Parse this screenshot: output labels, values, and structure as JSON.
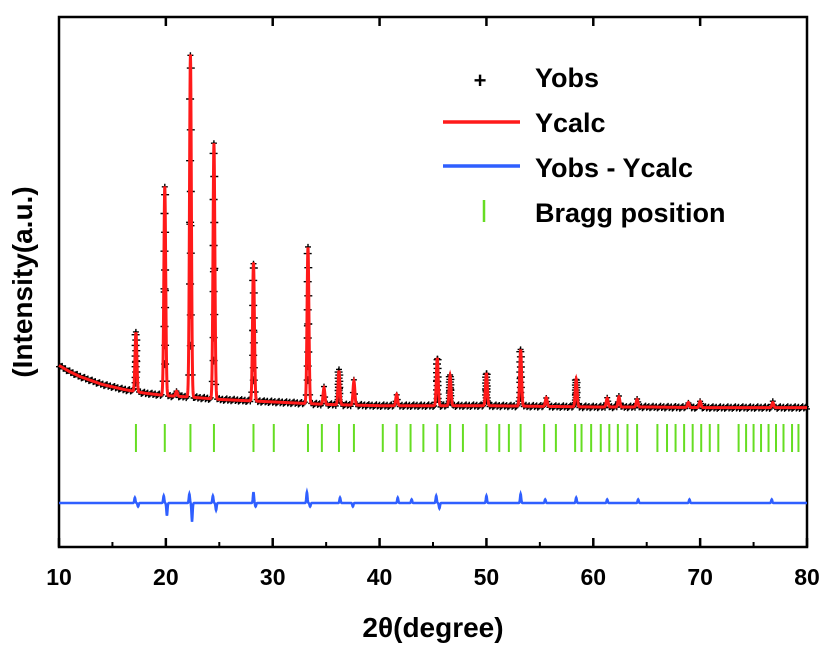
{
  "chart_data": {
    "type": "line",
    "xlabel": "2θ(degree)",
    "ylabel": "(Intensity(a.u.)",
    "xlim": [
      10,
      80
    ],
    "x_ticks": [
      10,
      20,
      30,
      40,
      50,
      60,
      70,
      80
    ],
    "y_ticks_labeled": false,
    "legend": {
      "position": "top-right",
      "entries": [
        {
          "label": "Yobs",
          "marker": "+",
          "color": "#000000"
        },
        {
          "label": "Ycalc",
          "line": true,
          "color": "#ff1a1a"
        },
        {
          "label": "Yobs - Ycalc",
          "line": true,
          "color": "#2f5fff"
        },
        {
          "label": "Bragg position",
          "marker": "|",
          "color": "#66dd22"
        }
      ]
    },
    "background": {
      "x": [
        10,
        11,
        12,
        13,
        14,
        15,
        16,
        18,
        20,
        22,
        25,
        30,
        35,
        40,
        45,
        50,
        55,
        60,
        65,
        70,
        75,
        80
      ],
      "y": [
        37,
        32,
        28,
        25,
        22,
        20,
        18,
        15,
        13,
        12,
        10,
        8,
        6,
        5,
        5,
        5,
        4.5,
        4,
        4,
        3.5,
        3.5,
        3.5
      ]
    },
    "peaks": [
      {
        "x": 17.2,
        "height": 47
      },
      {
        "x": 19.9,
        "height": 166
      },
      {
        "x": 21.0,
        "height": 4
      },
      {
        "x": 22.3,
        "height": 272
      },
      {
        "x": 24.5,
        "height": 203
      },
      {
        "x": 28.2,
        "height": 110
      },
      {
        "x": 33.3,
        "height": 124
      },
      {
        "x": 34.8,
        "height": 13
      },
      {
        "x": 36.2,
        "height": 27
      },
      {
        "x": 37.6,
        "height": 19
      },
      {
        "x": 41.6,
        "height": 9
      },
      {
        "x": 45.4,
        "height": 38
      },
      {
        "x": 46.6,
        "height": 24
      },
      {
        "x": 50.0,
        "height": 26
      },
      {
        "x": 53.2,
        "height": 45
      },
      {
        "x": 55.6,
        "height": 7
      },
      {
        "x": 58.4,
        "height": 22
      },
      {
        "x": 61.3,
        "height": 7
      },
      {
        "x": 62.4,
        "height": 8
      },
      {
        "x": 64.1,
        "height": 6
      },
      {
        "x": 68.9,
        "height": 4
      },
      {
        "x": 70.0,
        "height": 5
      },
      {
        "x": 76.8,
        "height": 4
      }
    ],
    "bragg_positions": [
      17.2,
      19.9,
      22.3,
      24.5,
      28.2,
      30.1,
      33.3,
      34.6,
      36.2,
      37.6,
      40.3,
      41.6,
      42.9,
      44.1,
      45.4,
      46.6,
      47.8,
      50.0,
      51.2,
      52.1,
      53.2,
      55.4,
      56.5,
      58.3,
      58.9,
      59.8,
      60.7,
      61.5,
      62.3,
      63.2,
      64.1,
      66.0,
      66.9,
      67.7,
      68.5,
      69.3,
      70.1,
      70.9,
      71.7,
      73.6,
      74.3,
      75.0,
      75.7,
      76.4,
      77.1,
      77.8,
      78.6,
      79.2
    ],
    "difference_spikes": [
      {
        "x": 17.1,
        "value": 3
      },
      {
        "x": 17.4,
        "value": -2
      },
      {
        "x": 19.8,
        "value": 4
      },
      {
        "x": 20.1,
        "value": -7
      },
      {
        "x": 22.2,
        "value": 5
      },
      {
        "x": 22.45,
        "value": -10
      },
      {
        "x": 24.4,
        "value": 4
      },
      {
        "x": 24.7,
        "value": -4
      },
      {
        "x": 28.2,
        "value": 6
      },
      {
        "x": 28.4,
        "value": -2
      },
      {
        "x": 33.2,
        "value": 6
      },
      {
        "x": 33.5,
        "value": -2
      },
      {
        "x": 36.3,
        "value": 3
      },
      {
        "x": 37.5,
        "value": -2
      },
      {
        "x": 41.7,
        "value": 3
      },
      {
        "x": 43.0,
        "value": 2
      },
      {
        "x": 45.3,
        "value": 4
      },
      {
        "x": 45.6,
        "value": -3
      },
      {
        "x": 50.0,
        "value": 4
      },
      {
        "x": 53.2,
        "value": 5
      },
      {
        "x": 55.5,
        "value": 2
      },
      {
        "x": 58.4,
        "value": 3
      },
      {
        "x": 61.3,
        "value": 2
      },
      {
        "x": 64.2,
        "value": 2
      },
      {
        "x": 69.0,
        "value": 2
      },
      {
        "x": 76.7,
        "value": 2
      }
    ]
  }
}
